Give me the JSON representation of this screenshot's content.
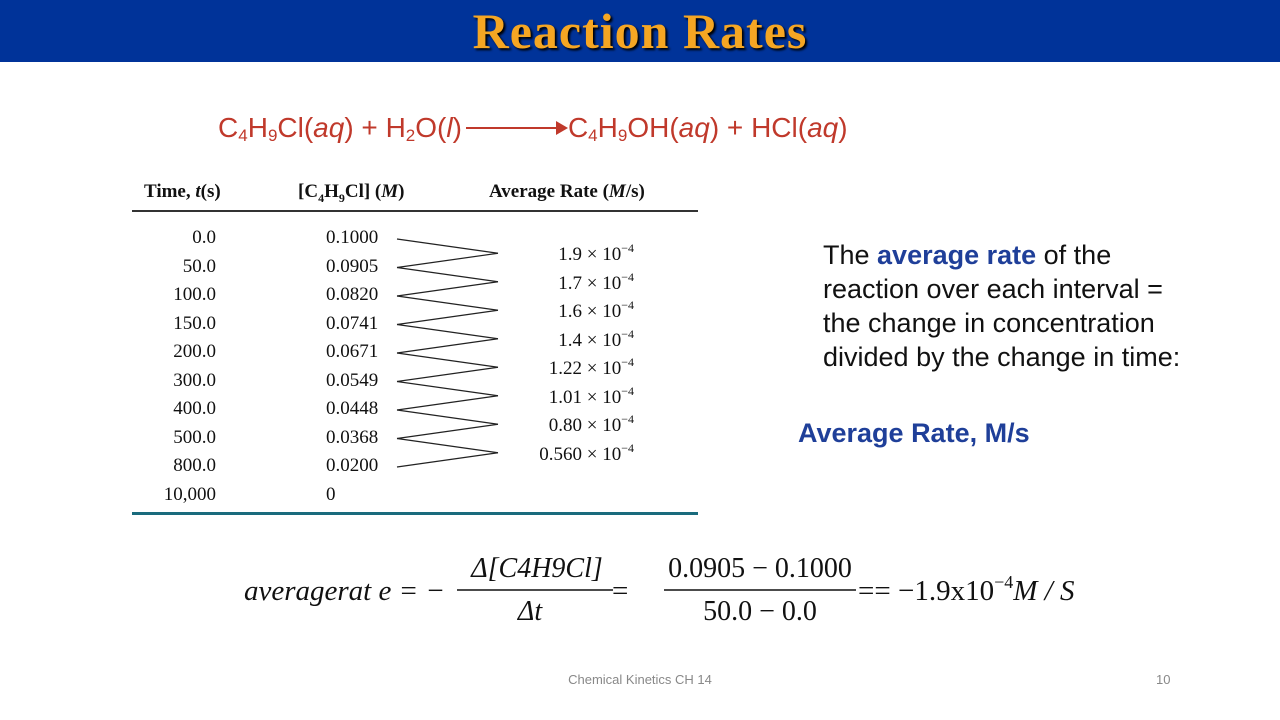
{
  "title": "Reaction Rates",
  "equation": {
    "parts": [
      "C",
      "4",
      "H",
      "9",
      "Cl(",
      "aq",
      ") + H",
      "2",
      "O(",
      "l",
      ")",
      "C",
      "4",
      "H",
      "9",
      "OH(",
      "aq",
      ") + HCl(",
      "aq",
      ")"
    ]
  },
  "table": {
    "headers": {
      "time": "Time, ",
      "time_var": "t",
      "time_unit": "(s)",
      "conc_a": "[C",
      "conc_sub1": "4",
      "conc_b": "H",
      "conc_sub2": "9",
      "conc_c": "Cl] (",
      "conc_unit": "M",
      "conc_d": ")",
      "rate_a": "Average Rate (",
      "rate_unit": "M",
      "rate_b": "/s)"
    },
    "times": [
      "0.0",
      "50.0",
      "100.0",
      "150.0",
      "200.0",
      "300.0",
      "400.0",
      "500.0",
      "800.0",
      "10,000"
    ],
    "concentrations": [
      "0.1000",
      "0.0905",
      "0.0820",
      "0.0741",
      "0.0671",
      "0.0549",
      "0.0448",
      "0.0368",
      "0.0200",
      "0"
    ],
    "rates": [
      {
        "mantissa": "1.9 × 10",
        "exp": "−4"
      },
      {
        "mantissa": "1.7 × 10",
        "exp": "−4"
      },
      {
        "mantissa": "1.6 × 10",
        "exp": "−4"
      },
      {
        "mantissa": "1.4 × 10",
        "exp": "−4"
      },
      {
        "mantissa": "1.22 × 10",
        "exp": "−4"
      },
      {
        "mantissa": "1.01 × 10",
        "exp": "−4"
      },
      {
        "mantissa": "0.80 × 10",
        "exp": "−4"
      },
      {
        "mantissa": "0.560 × 10",
        "exp": "−4"
      }
    ]
  },
  "description": {
    "pre": "The ",
    "highlight": "average rate",
    "post": " of the reaction over each interval = the change in concentration divided by the change in time:"
  },
  "avg_label": "Average Rate, M/s",
  "formula": {
    "lhs": "averagerat e = −",
    "frac1_num": "Δ[C4H9Cl]",
    "frac1_den": "Δt",
    "eq": "=",
    "frac2_num": "0.0905 − 0.1000",
    "frac2_den": "50.0 − 0.0",
    "result": "== −1.9x10",
    "result_exp": "−4",
    "result_unit": "M / S"
  },
  "footer": {
    "center": "Chemical Kinetics CH 14",
    "page": "10"
  },
  "colors": {
    "title_bar": "#003399",
    "title_text": "#f5a623",
    "equation": "#c0392b",
    "highlight": "#1f3f99",
    "table_rule": "#1a6b7d"
  }
}
